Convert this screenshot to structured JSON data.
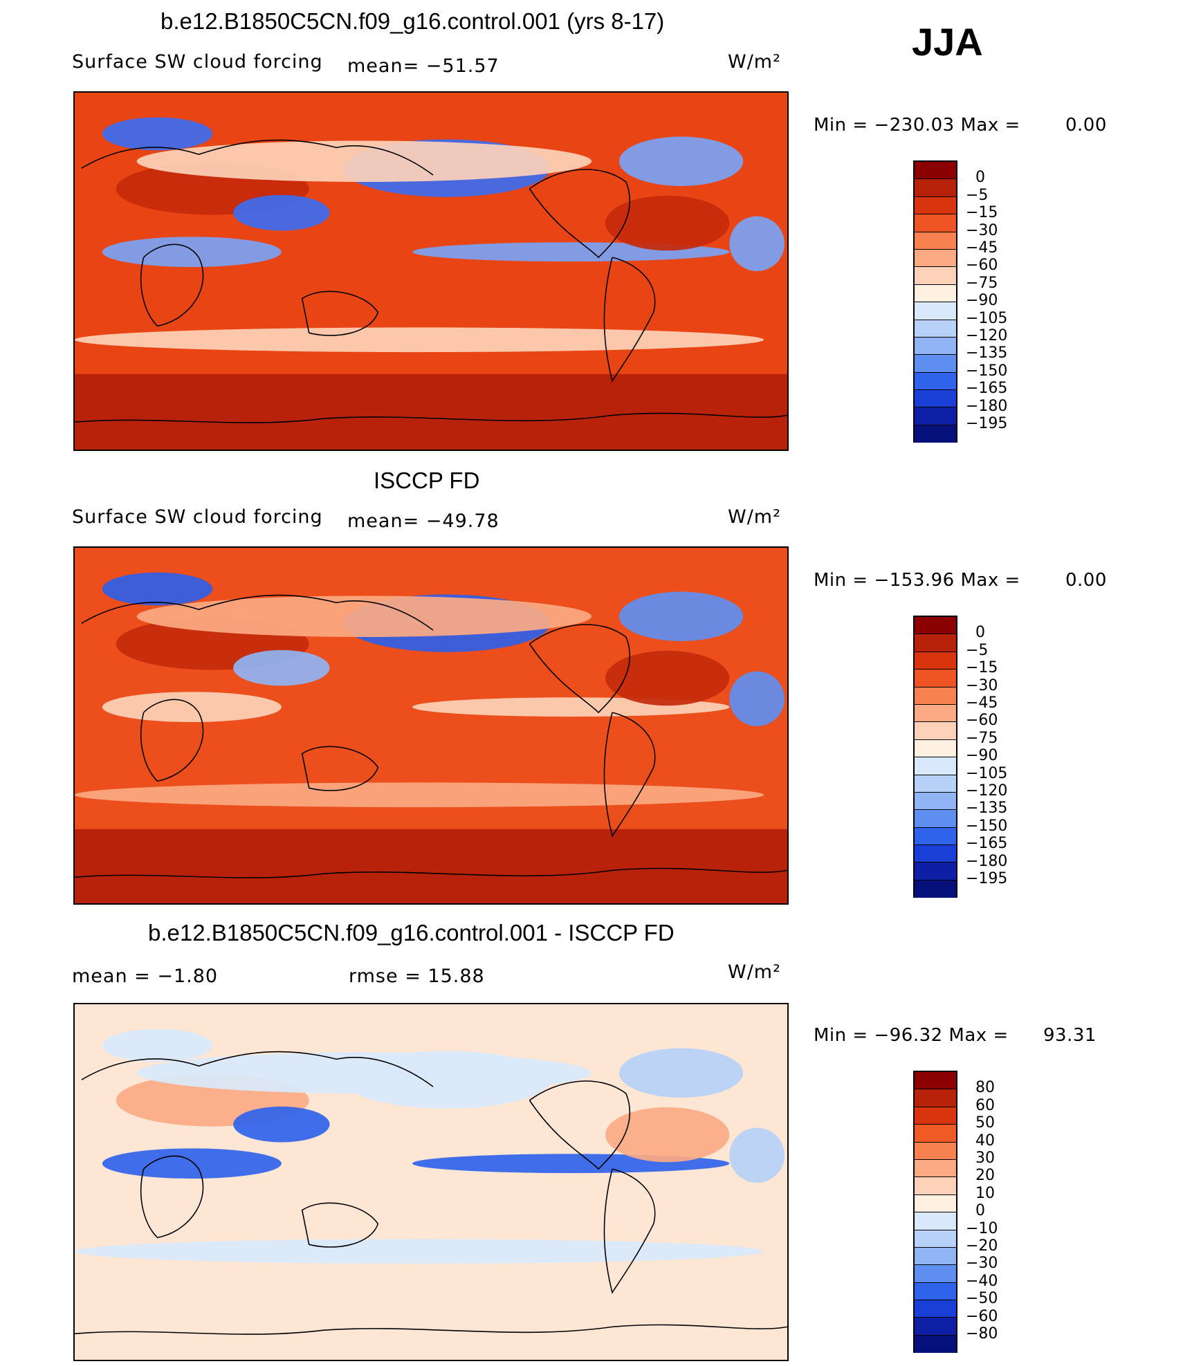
{
  "season": "JJA",
  "panels": [
    {
      "title": "b.e12.B1850C5CN.f09_g16.control.001 (yrs 8-17)",
      "left_label": "Surface SW cloud forcing",
      "stat_label": "mean= −51.57",
      "stat2_label": "",
      "units": "W/m²",
      "min_max": "Min = −230.03 Max =",
      "max_value": "0.00",
      "colorbar_ticks": [
        "0",
        "−5",
        "−15",
        "−30",
        "−45",
        "−60",
        "−75",
        "−90",
        "−105",
        "−120",
        "−135",
        "−150",
        "−165",
        "−180",
        "−195"
      ],
      "colorbar_colors": [
        "#8b0000",
        "#b8210a",
        "#d8350e",
        "#ee5424",
        "#f7814f",
        "#fbaa83",
        "#fdd2b8",
        "#fff1e2",
        "#d9e9fb",
        "#b7d1f8",
        "#90b4f4",
        "#5f8ff0",
        "#3063ec",
        "#1a3fd6",
        "#0c1fa5",
        "#05107a"
      ],
      "map_layers": [
        {
          "shape": "base",
          "color": "#e84414"
        },
        {
          "shape": "south-band",
          "color": "#b8220a"
        },
        {
          "shape": "north-pacific-blob",
          "color": "#3d6cf0"
        },
        {
          "shape": "north-atlantic-blob",
          "color": "#7aa3f4"
        },
        {
          "shape": "itcz-band",
          "color": "#7aa3f4"
        },
        {
          "shape": "sahara-blob",
          "color": "#c42a0b"
        },
        {
          "shape": "pale-bands",
          "color": "#fdd2b8"
        },
        {
          "shape": "tibet-blob",
          "color": "#3d6cf0"
        }
      ]
    },
    {
      "title": "ISCCP FD",
      "left_label": "Surface SW cloud forcing",
      "stat_label": "mean= −49.78",
      "stat2_label": "",
      "units": "W/m²",
      "min_max": "Min = −153.96 Max =",
      "max_value": "0.00",
      "colorbar_ticks": [
        "0",
        "−5",
        "−15",
        "−30",
        "−45",
        "−60",
        "−75",
        "−90",
        "−105",
        "−120",
        "−135",
        "−150",
        "−165",
        "−180",
        "−195"
      ],
      "colorbar_colors": [
        "#8b0000",
        "#b8210a",
        "#d8350e",
        "#ee5424",
        "#f7814f",
        "#fbaa83",
        "#fdd2b8",
        "#fff1e2",
        "#d9e9fb",
        "#b7d1f8",
        "#90b4f4",
        "#5f8ff0",
        "#3063ec",
        "#1a3fd6",
        "#0c1fa5",
        "#05107a"
      ],
      "map_layers": [
        {
          "shape": "base",
          "color": "#ec4e1c"
        },
        {
          "shape": "south-band",
          "color": "#b8220a"
        },
        {
          "shape": "north-pacific-blob",
          "color": "#2f5fe8"
        },
        {
          "shape": "north-atlantic-blob",
          "color": "#5f8ff0"
        },
        {
          "shape": "itcz-band",
          "color": "#fdd2b8"
        },
        {
          "shape": "sahara-blob",
          "color": "#c42a0b"
        },
        {
          "shape": "pale-bands",
          "color": "#fbaa83"
        },
        {
          "shape": "tibet-blob",
          "color": "#90b4f4"
        }
      ]
    },
    {
      "title": "b.e12.B1850C5CN.f09_g16.control.001 - ISCCP FD",
      "left_label": "mean =   −1.80",
      "stat_label": "",
      "stat2_label": "rmse =   15.88",
      "units": "W/m²",
      "min_max": "Min = −96.32 Max =",
      "max_value": "93.31",
      "colorbar_ticks": [
        "80",
        "60",
        "50",
        "40",
        "30",
        "20",
        "10",
        "0",
        "−10",
        "−20",
        "−30",
        "−40",
        "−50",
        "−60",
        "−80"
      ],
      "colorbar_colors": [
        "#8b0000",
        "#b8210a",
        "#d8350e",
        "#f05a24",
        "#f7814f",
        "#fbaa83",
        "#fdd2b8",
        "#fff1e2",
        "#d9e9fb",
        "#b7d1f8",
        "#90b4f4",
        "#5f8ff0",
        "#3063ec",
        "#1a3fd6",
        "#0c1fa5",
        "#05107a"
      ],
      "map_layers": [
        {
          "shape": "base",
          "color": "#fde6d4"
        },
        {
          "shape": "south-band",
          "color": "#fde6d4"
        },
        {
          "shape": "north-pacific-blob",
          "color": "#d9e9fb"
        },
        {
          "shape": "north-atlantic-blob",
          "color": "#b7d1f8"
        },
        {
          "shape": "itcz-band",
          "color": "#3063ec"
        },
        {
          "shape": "sahara-blob",
          "color": "#fbaa83"
        },
        {
          "shape": "pale-bands",
          "color": "#d9e9fb"
        },
        {
          "shape": "tibet-blob",
          "color": "#3063ec"
        }
      ]
    }
  ]
}
